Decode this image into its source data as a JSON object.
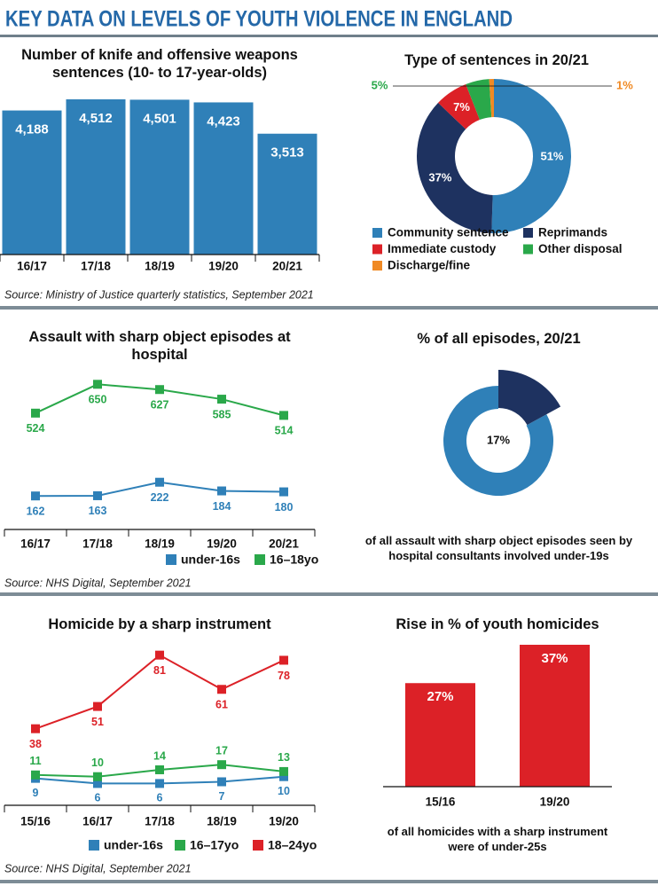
{
  "title": "KEY DATA ON LEVELS OF YOUTH VIOLENCE IN ENGLAND",
  "chart_data": [
    {
      "type": "bar",
      "title": "Number of knife and offensive weapons sentences (10- to 17-year-olds)",
      "categories": [
        "16/17",
        "17/18",
        "18/19",
        "19/20",
        "20/21"
      ],
      "values": [
        4188,
        4512,
        4501,
        4423,
        3513
      ],
      "value_labels": [
        "4,188",
        "4,512",
        "4,501",
        "4,423",
        "3,513"
      ],
      "color": "#2f80b8",
      "source": "Source: Ministry of Justice quarterly statistics, September 2021"
    },
    {
      "type": "donut",
      "title": "Type of sentences in 20/21",
      "categories": [
        "Community sentence",
        "Reprimands",
        "Immediate custody",
        "Other disposal",
        "Discharge/fine"
      ],
      "values": [
        51,
        37,
        7,
        5,
        1
      ],
      "value_labels": [
        "51%",
        "37%",
        "7%",
        "5%",
        "1%"
      ],
      "colors": [
        "#2f80b8",
        "#1e3260",
        "#dc2127",
        "#2aa84a",
        "#f08a24"
      ]
    },
    {
      "type": "line",
      "title": "Assault with sharp object episodes at hospital",
      "categories": [
        "16/17",
        "17/18",
        "18/19",
        "19/20",
        "20/21"
      ],
      "series": [
        {
          "name": "under-16s",
          "color": "#2f80b8",
          "values": [
            162,
            163,
            222,
            184,
            180
          ]
        },
        {
          "name": "16–18yo",
          "color": "#2aa84a",
          "values": [
            524,
            650,
            627,
            585,
            514
          ]
        }
      ],
      "source": "Source: NHS Digital, September 2021"
    },
    {
      "type": "donut",
      "title": "% of all episodes, 20/21",
      "values": [
        17
      ],
      "value_labels": [
        "17%"
      ],
      "colors": [
        "#1e3260"
      ],
      "rest_color": "#2f80b8",
      "note": "of all assault with sharp object episodes seen by hospital consultants involved under-19s"
    },
    {
      "type": "line",
      "title": "Homicide by a sharp instrument",
      "categories": [
        "15/16",
        "16/17",
        "17/18",
        "18/19",
        "19/20"
      ],
      "series": [
        {
          "name": "under-16s",
          "color": "#2f80b8",
          "values": [
            9,
            6,
            6,
            7,
            10
          ]
        },
        {
          "name": "16–17yo",
          "color": "#2aa84a",
          "values": [
            11,
            10,
            14,
            17,
            13
          ]
        },
        {
          "name": "18–24yo",
          "color": "#dc2127",
          "values": [
            38,
            51,
            81,
            61,
            78
          ]
        }
      ],
      "source": "Source: NHS Digital, September 2021"
    },
    {
      "type": "bar",
      "title": "Rise in % of youth homicides",
      "categories": [
        "15/16",
        "19/20"
      ],
      "values": [
        27,
        37
      ],
      "value_labels": [
        "27%",
        "37%"
      ],
      "color": "#dc2127",
      "note": "of all homicides with a sharp instrument were of under-25s"
    }
  ]
}
